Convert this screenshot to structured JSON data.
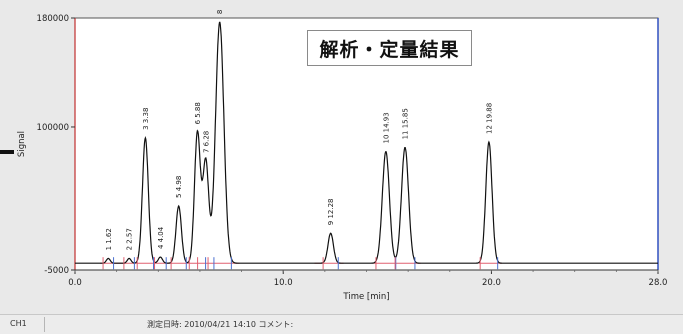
{
  "chart_data": {
    "type": "line",
    "title": "解析・定量結果",
    "xlabel": "Time [min]",
    "ylabel": "Signal",
    "xlim": [
      0.0,
      28.0
    ],
    "ylim": [
      -5000,
      180000
    ],
    "xticks": [
      "0.0",
      "10.0",
      "20.0",
      "28.0"
    ],
    "yticks": [
      "-5000",
      "100000",
      "180000"
    ],
    "line_color": "#111111",
    "baseline_color": "#e06070",
    "marker_color": "#4a6fd0",
    "peaks": [
      {
        "label": "1  1.62",
        "rt": 1.6,
        "height": 3500,
        "width": 0.09
      },
      {
        "label": "2  2.57",
        "rt": 2.6,
        "height": 3500,
        "width": 0.09
      },
      {
        "label": "3  3.38",
        "rt": 3.38,
        "height": 92000,
        "width": 0.14
      },
      {
        "label": "4  4.04",
        "rt": 4.1,
        "height": 4500,
        "width": 0.1
      },
      {
        "label": "5  4.98",
        "rt": 4.98,
        "height": 42000,
        "width": 0.13
      },
      {
        "label": "6  5.88",
        "rt": 5.88,
        "height": 96000,
        "width": 0.14
      },
      {
        "label": "7  6.28",
        "rt": 6.28,
        "height": 75000,
        "width": 0.14
      },
      {
        "label": "8",
        "rt": 6.95,
        "height": 177000,
        "width": 0.2
      },
      {
        "label": "9  12.28",
        "rt": 12.28,
        "height": 22000,
        "width": 0.13
      },
      {
        "label": "10  14.93",
        "rt": 14.93,
        "height": 82000,
        "width": 0.17
      },
      {
        "label": "11  15.85",
        "rt": 15.85,
        "height": 85000,
        "width": 0.17
      },
      {
        "label": "12  19.88",
        "rt": 19.88,
        "height": 89000,
        "width": 0.15
      }
    ]
  },
  "overlay": {
    "result_title": "解析・定量結果"
  },
  "status_bar": {
    "channel": "CH1",
    "date": "測定日時: 2010/04/21  14:10 コメント:"
  },
  "colors": {
    "frame_left": "#c03030",
    "frame_right": "#3050c0",
    "background": "#e9e9e9",
    "plot_background": "#ffffff"
  }
}
